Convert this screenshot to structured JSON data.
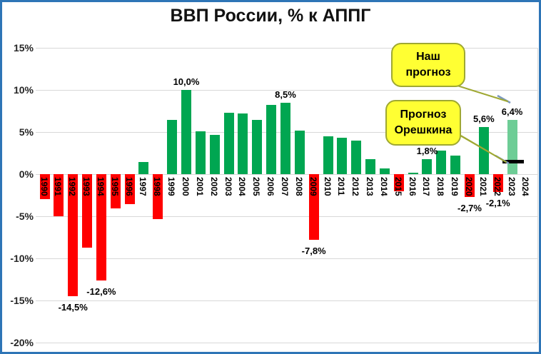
{
  "title": "ВВП России, % к АППГ",
  "frame": {
    "border_color": "#2E75B6",
    "background": "#FFFFFF"
  },
  "chart_data": {
    "type": "bar",
    "title": "ВВП России, % к АППГ",
    "xlabel": "",
    "ylabel": "",
    "ylim": [
      -20,
      15
    ],
    "grid": true,
    "legend": "none",
    "y_ticks": [
      {
        "value": 15,
        "label": "15%"
      },
      {
        "value": 10,
        "label": "10%"
      },
      {
        "value": 5,
        "label": "5%"
      },
      {
        "value": 0,
        "label": "0%"
      },
      {
        "value": -5,
        "label": "-5%"
      },
      {
        "value": -10,
        "label": "-10%"
      },
      {
        "value": -15,
        "label": "-15%"
      },
      {
        "value": -20,
        "label": "-20%"
      }
    ],
    "colors": {
      "positive": "#00A651",
      "negative": "#FF0000",
      "forecast": "#6ECD96"
    },
    "points": [
      {
        "year": "1990",
        "value": -3.0,
        "role": "neg",
        "label": null
      },
      {
        "year": "1991",
        "value": -5.0,
        "role": "neg",
        "label": null
      },
      {
        "year": "1992",
        "value": -14.5,
        "role": "neg",
        "label": "-14,5%"
      },
      {
        "year": "1993",
        "value": -8.7,
        "role": "neg",
        "label": null
      },
      {
        "year": "1994",
        "value": -12.6,
        "role": "neg",
        "label": "-12,6%"
      },
      {
        "year": "1995",
        "value": -4.1,
        "role": "neg",
        "label": null
      },
      {
        "year": "1996",
        "value": -3.6,
        "role": "neg",
        "label": null
      },
      {
        "year": "1997",
        "value": 1.4,
        "role": "pos",
        "label": null
      },
      {
        "year": "1998",
        "value": -5.3,
        "role": "neg",
        "label": null
      },
      {
        "year": "1999",
        "value": 6.4,
        "role": "pos",
        "label": null
      },
      {
        "year": "2000",
        "value": 10.0,
        "role": "pos",
        "label": "10,0%"
      },
      {
        "year": "2001",
        "value": 5.1,
        "role": "pos",
        "label": null
      },
      {
        "year": "2002",
        "value": 4.7,
        "role": "pos",
        "label": null
      },
      {
        "year": "2003",
        "value": 7.3,
        "role": "pos",
        "label": null
      },
      {
        "year": "2004",
        "value": 7.2,
        "role": "pos",
        "label": null
      },
      {
        "year": "2005",
        "value": 6.4,
        "role": "pos",
        "label": null
      },
      {
        "year": "2006",
        "value": 8.2,
        "role": "pos",
        "label": null
      },
      {
        "year": "2007",
        "value": 8.5,
        "role": "pos",
        "label": "8,5%"
      },
      {
        "year": "2008",
        "value": 5.2,
        "role": "pos",
        "label": null
      },
      {
        "year": "2009",
        "value": -7.8,
        "role": "neg",
        "label": "-7,8%"
      },
      {
        "year": "2010",
        "value": 4.5,
        "role": "pos",
        "label": null
      },
      {
        "year": "2011",
        "value": 4.3,
        "role": "pos",
        "label": null
      },
      {
        "year": "2012",
        "value": 4.0,
        "role": "pos",
        "label": null
      },
      {
        "year": "2013",
        "value": 1.8,
        "role": "pos",
        "label": null
      },
      {
        "year": "2014",
        "value": 0.7,
        "role": "pos",
        "label": null
      },
      {
        "year": "2015",
        "value": -2.0,
        "role": "neg",
        "label": null
      },
      {
        "year": "2016",
        "value": 0.2,
        "role": "pos",
        "label": null
      },
      {
        "year": "2017",
        "value": 1.8,
        "role": "pos",
        "label": "1,8%"
      },
      {
        "year": "2018",
        "value": 2.8,
        "role": "pos",
        "label": null
      },
      {
        "year": "2019",
        "value": 2.2,
        "role": "pos",
        "label": null
      },
      {
        "year": "2020",
        "value": -2.7,
        "role": "neg",
        "label": "-2,7%"
      },
      {
        "year": "2021",
        "value": 5.6,
        "role": "pos",
        "label": "5,6%"
      },
      {
        "year": "2022",
        "value": -2.1,
        "role": "neg",
        "label": "-2,1%"
      },
      {
        "year": "2023",
        "value": 6.4,
        "role": "forecast",
        "label": "6,4%"
      },
      {
        "year": "2024",
        "value": null,
        "role": null,
        "label": null
      }
    ]
  },
  "callouts": [
    {
      "lines": [
        "Наш",
        "прогноз"
      ],
      "fill": "#FFFF33",
      "border": "#9FA832"
    },
    {
      "lines": [
        "Прогноз",
        "Орешкина"
      ],
      "fill": "#FFFF33",
      "border": "#9FA832"
    }
  ],
  "oreshkin_marker": {
    "year": "2023",
    "value_pct": 1.5,
    "color": "#000000"
  }
}
